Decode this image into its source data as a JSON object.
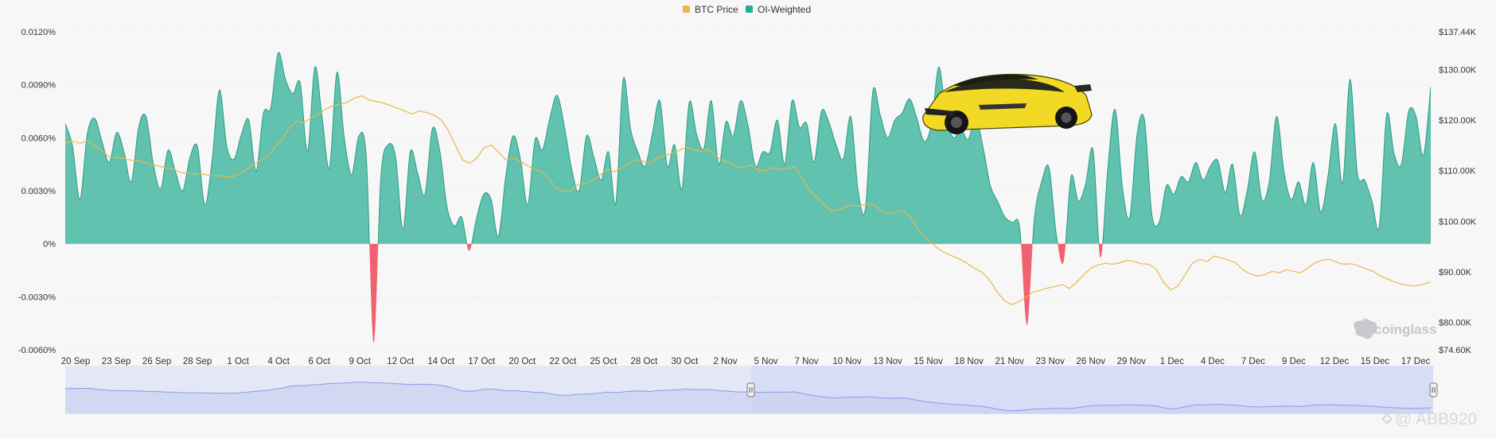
{
  "chart_data": {
    "type": "area",
    "legend": [
      {
        "label": "BTC Price",
        "color": "#e8b84a"
      },
      {
        "label": "OI-Weighted",
        "color": "#21b191"
      }
    ],
    "legend_position": "top-center",
    "y_left": {
      "range": [
        -0.006,
        0.012
      ],
      "ticks": [
        "0.0120%",
        "0.0090%",
        "0.0060%",
        "0.0030%",
        "0%",
        "-0.0030%",
        "-0.0060%"
      ],
      "tick_values": [
        0.012,
        0.009,
        0.006,
        0.003,
        0,
        -0.003,
        -0.006
      ]
    },
    "y_right": {
      "range": [
        74.6,
        137.44
      ],
      "ticks": [
        "$137.44K",
        "$130.00K",
        "$120.00K",
        "$110.00K",
        "$100.00K",
        "$90.00K",
        "$80.00K",
        "$74.60K"
      ],
      "tick_values": [
        137.44,
        130,
        120,
        110,
        100,
        90,
        80,
        74.6
      ]
    },
    "x_ticks": [
      "20 Sep",
      "23 Sep",
      "26 Sep",
      "28 Sep",
      "1 Oct",
      "4 Oct",
      "6 Oct",
      "9 Oct",
      "12 Oct",
      "14 Oct",
      "17 Oct",
      "20 Oct",
      "22 Oct",
      "25 Oct",
      "28 Oct",
      "30 Oct",
      "2 Nov",
      "5 Nov",
      "7 Nov",
      "10 Nov",
      "13 Nov",
      "15 Nov",
      "18 Nov",
      "21 Nov",
      "23 Nov",
      "26 Nov",
      "29 Nov",
      "1 Dec",
      "4 Dec",
      "7 Dec",
      "9 Dec",
      "12 Dec",
      "15 Dec",
      "17 Dec"
    ],
    "series": [
      {
        "name": "OI-Weighted",
        "unit": "%",
        "values": [
          0.0068,
          0.0055,
          0.0025,
          0.0062,
          0.0071,
          0.0058,
          0.0046,
          0.0063,
          0.0052,
          0.0035,
          0.0066,
          0.0072,
          0.0045,
          0.0031,
          0.0053,
          0.0041,
          0.003,
          0.0049,
          0.0055,
          0.0022,
          0.0047,
          0.0087,
          0.0055,
          0.0048,
          0.0062,
          0.007,
          0.0041,
          0.0074,
          0.0077,
          0.0108,
          0.0093,
          0.0085,
          0.0091,
          0.0052,
          0.01,
          0.0071,
          0.0043,
          0.0097,
          0.006,
          0.0039,
          0.0061,
          0.0049,
          -0.0056,
          0.0038,
          0.0056,
          0.0049,
          0.0008,
          0.0052,
          0.004,
          0.0028,
          0.0065,
          0.0053,
          0.0021,
          0.001,
          0.0015,
          -0.0004,
          0.0014,
          0.0028,
          0.0025,
          0.0004,
          0.0038,
          0.0061,
          0.0048,
          0.0022,
          0.0059,
          0.0053,
          0.0071,
          0.0084,
          0.0066,
          0.0042,
          0.003,
          0.0061,
          0.0049,
          0.0036,
          0.0052,
          0.0023,
          0.0093,
          0.0065,
          0.0052,
          0.0044,
          0.0063,
          0.0081,
          0.0044,
          0.0056,
          0.0031,
          0.008,
          0.0062,
          0.0054,
          0.0081,
          0.0045,
          0.0069,
          0.0061,
          0.0081,
          0.0067,
          0.0044,
          0.0052,
          0.0052,
          0.007,
          0.0045,
          0.0081,
          0.0066,
          0.0068,
          0.0046,
          0.0075,
          0.0069,
          0.0056,
          0.0048,
          0.0072,
          0.003,
          0.002,
          0.0086,
          0.0073,
          0.006,
          0.007,
          0.0074,
          0.0082,
          0.0071,
          0.0058,
          0.0068,
          0.01,
          0.0071,
          0.006,
          0.0065,
          0.0059,
          0.0072,
          0.0055,
          0.0033,
          0.0024,
          0.0015,
          0.0012,
          0.0009,
          -0.0046,
          0.0014,
          0.0035,
          0.0043,
          0.0005,
          -0.001,
          0.0038,
          0.0024,
          0.0034,
          0.0053,
          -0.0008,
          0.0042,
          0.0076,
          0.0032,
          0.0015,
          0.0062,
          0.007,
          0.0017,
          0.0012,
          0.0033,
          0.0028,
          0.0038,
          0.0035,
          0.0046,
          0.0036,
          0.0044,
          0.0047,
          0.0029,
          0.0045,
          0.0016,
          0.003,
          0.0052,
          0.0025,
          0.0035,
          0.0072,
          0.0041,
          0.0025,
          0.0035,
          0.0022,
          0.0046,
          0.0018,
          0.0038,
          0.0068,
          0.0034,
          0.0093,
          0.004,
          0.0036,
          0.0024,
          0.001,
          0.0073,
          0.0051,
          0.0045,
          0.0075,
          0.0072,
          0.005,
          0.0089
        ]
      },
      {
        "name": "BTC Price",
        "unit": "$K",
        "values": [
          115.5,
          115.8,
          115.4,
          115.9,
          115.1,
          114.0,
          112.8,
          112.6,
          112.4,
          112.1,
          112.0,
          111.6,
          111.2,
          110.9,
          110.5,
          110.3,
          109.6,
          109.5,
          109.4,
          109.3,
          109.1,
          109.0,
          108.9,
          108.7,
          109.3,
          110.1,
          111.2,
          112.0,
          112.8,
          114.6,
          116.1,
          118.5,
          119.8,
          119.5,
          120.4,
          121.2,
          122.1,
          122.8,
          123.1,
          123.5,
          124.3,
          124.8,
          124.0,
          123.7,
          123.4,
          122.9,
          122.3,
          121.8,
          121.2,
          121.8,
          121.5,
          121.0,
          120.1,
          118.0,
          115.0,
          112.1,
          111.5,
          112.5,
          114.6,
          115.0,
          113.6,
          112.1,
          112.5,
          111.8,
          111.0,
          110.2,
          109.8,
          108.3,
          106.5,
          105.9,
          106.0,
          107.3,
          107.5,
          108.1,
          109.0,
          110.3,
          109.8,
          110.5,
          111.4,
          112.2,
          111.9,
          111.3,
          112.6,
          113.0,
          113.4,
          114.0,
          114.7,
          114.1,
          113.8,
          114.2,
          112.9,
          112.0,
          111.5,
          110.6,
          110.7,
          111.1,
          110.0,
          110.0,
          110.6,
          110.2,
          110.5,
          110.7,
          108.5,
          106.2,
          104.8,
          103.4,
          102.0,
          102.3,
          102.8,
          103.2,
          103.0,
          103.5,
          103.2,
          102.0,
          101.5,
          101.8,
          102.1,
          100.8,
          98.5,
          96.8,
          95.6,
          94.4,
          93.6,
          93.0,
          92.4,
          91.5,
          90.6,
          89.8,
          88.2,
          86.0,
          84.3,
          83.5,
          84.1,
          85.1,
          86.0,
          86.4,
          86.8,
          87.1,
          87.5,
          86.7,
          88.0,
          89.5,
          90.8,
          91.4,
          91.7,
          91.5,
          91.8,
          92.3,
          92.0,
          91.6,
          91.5,
          90.5,
          88.0,
          86.4,
          87.2,
          89.4,
          91.7,
          92.5,
          92.0,
          93.1,
          92.8,
          92.3,
          91.8,
          90.4,
          89.6,
          89.2,
          89.4,
          90.1,
          89.8,
          90.4,
          90.1,
          89.8,
          90.8,
          91.8,
          92.3,
          92.5,
          91.9,
          91.5,
          91.6,
          91.2,
          90.6,
          90.1,
          89.2,
          88.6,
          88.0,
          87.6,
          87.3,
          87.2,
          87.6,
          88.0
        ]
      }
    ],
    "grid": true,
    "watermarks": [
      "coinglass",
      "@ ABB920"
    ]
  }
}
